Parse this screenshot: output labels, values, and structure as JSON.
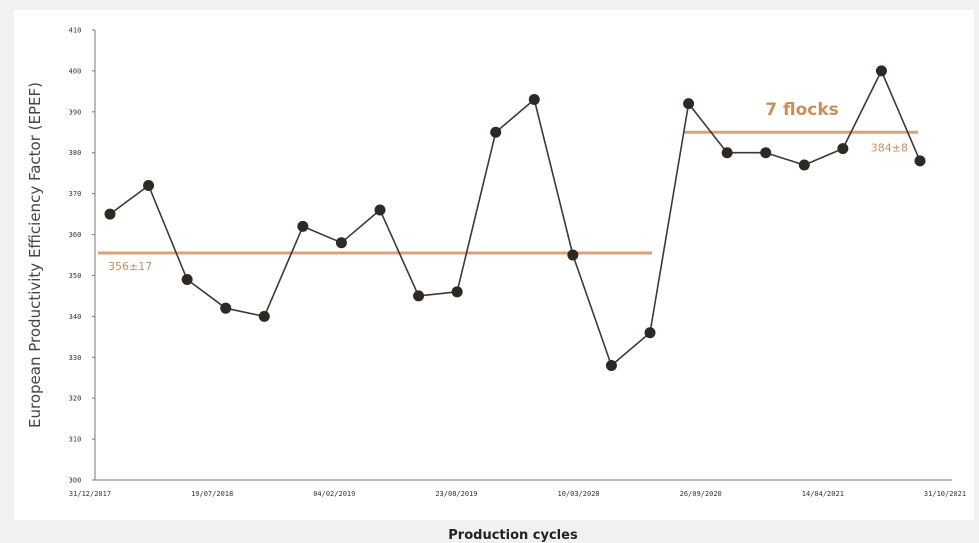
{
  "colors": {
    "background": "#f1f1f1",
    "plot_background": "#ffffff",
    "series_line": "#3a3a3a",
    "marker": "#2e2a22",
    "mean_line": "#d6a47a",
    "mean_label": "#c98f58"
  },
  "chart_data": {
    "type": "line",
    "xlabel": "Production cycles",
    "ylabel": "European Productivity Efficiency Factor (EPEF)",
    "ylim": [
      300,
      410
    ],
    "yticks": [
      300,
      310,
      320,
      330,
      340,
      350,
      360,
      370,
      380,
      390,
      400,
      410
    ],
    "ytick_labels": [
      "300",
      "310",
      "320",
      "330",
      "340",
      "350",
      "360",
      "370",
      "380",
      "390",
      "400",
      "410"
    ],
    "x_tick_labels": [
      "31/12/2017",
      "19/07/2018",
      "04/02/2019",
      "23/08/2019",
      "10/03/2020",
      "26/09/2020",
      "14/04/2021",
      "31/10/2021"
    ],
    "grid": false,
    "series": [
      {
        "values": [
          365,
          372,
          349,
          342,
          340,
          362,
          358,
          366,
          345,
          346,
          385,
          393,
          355,
          328,
          336,
          392,
          380,
          380,
          377,
          381,
          400,
          378
        ]
      }
    ],
    "reference_lines": [
      {
        "label": "356±17",
        "value": 355.5,
        "from_index": 0,
        "to_index": 14
      },
      {
        "label": "384±8",
        "value": 385,
        "from_index": 15,
        "to_index": 21
      }
    ],
    "annotations": [
      {
        "text": "7 flocks",
        "near_index": 18
      }
    ]
  }
}
